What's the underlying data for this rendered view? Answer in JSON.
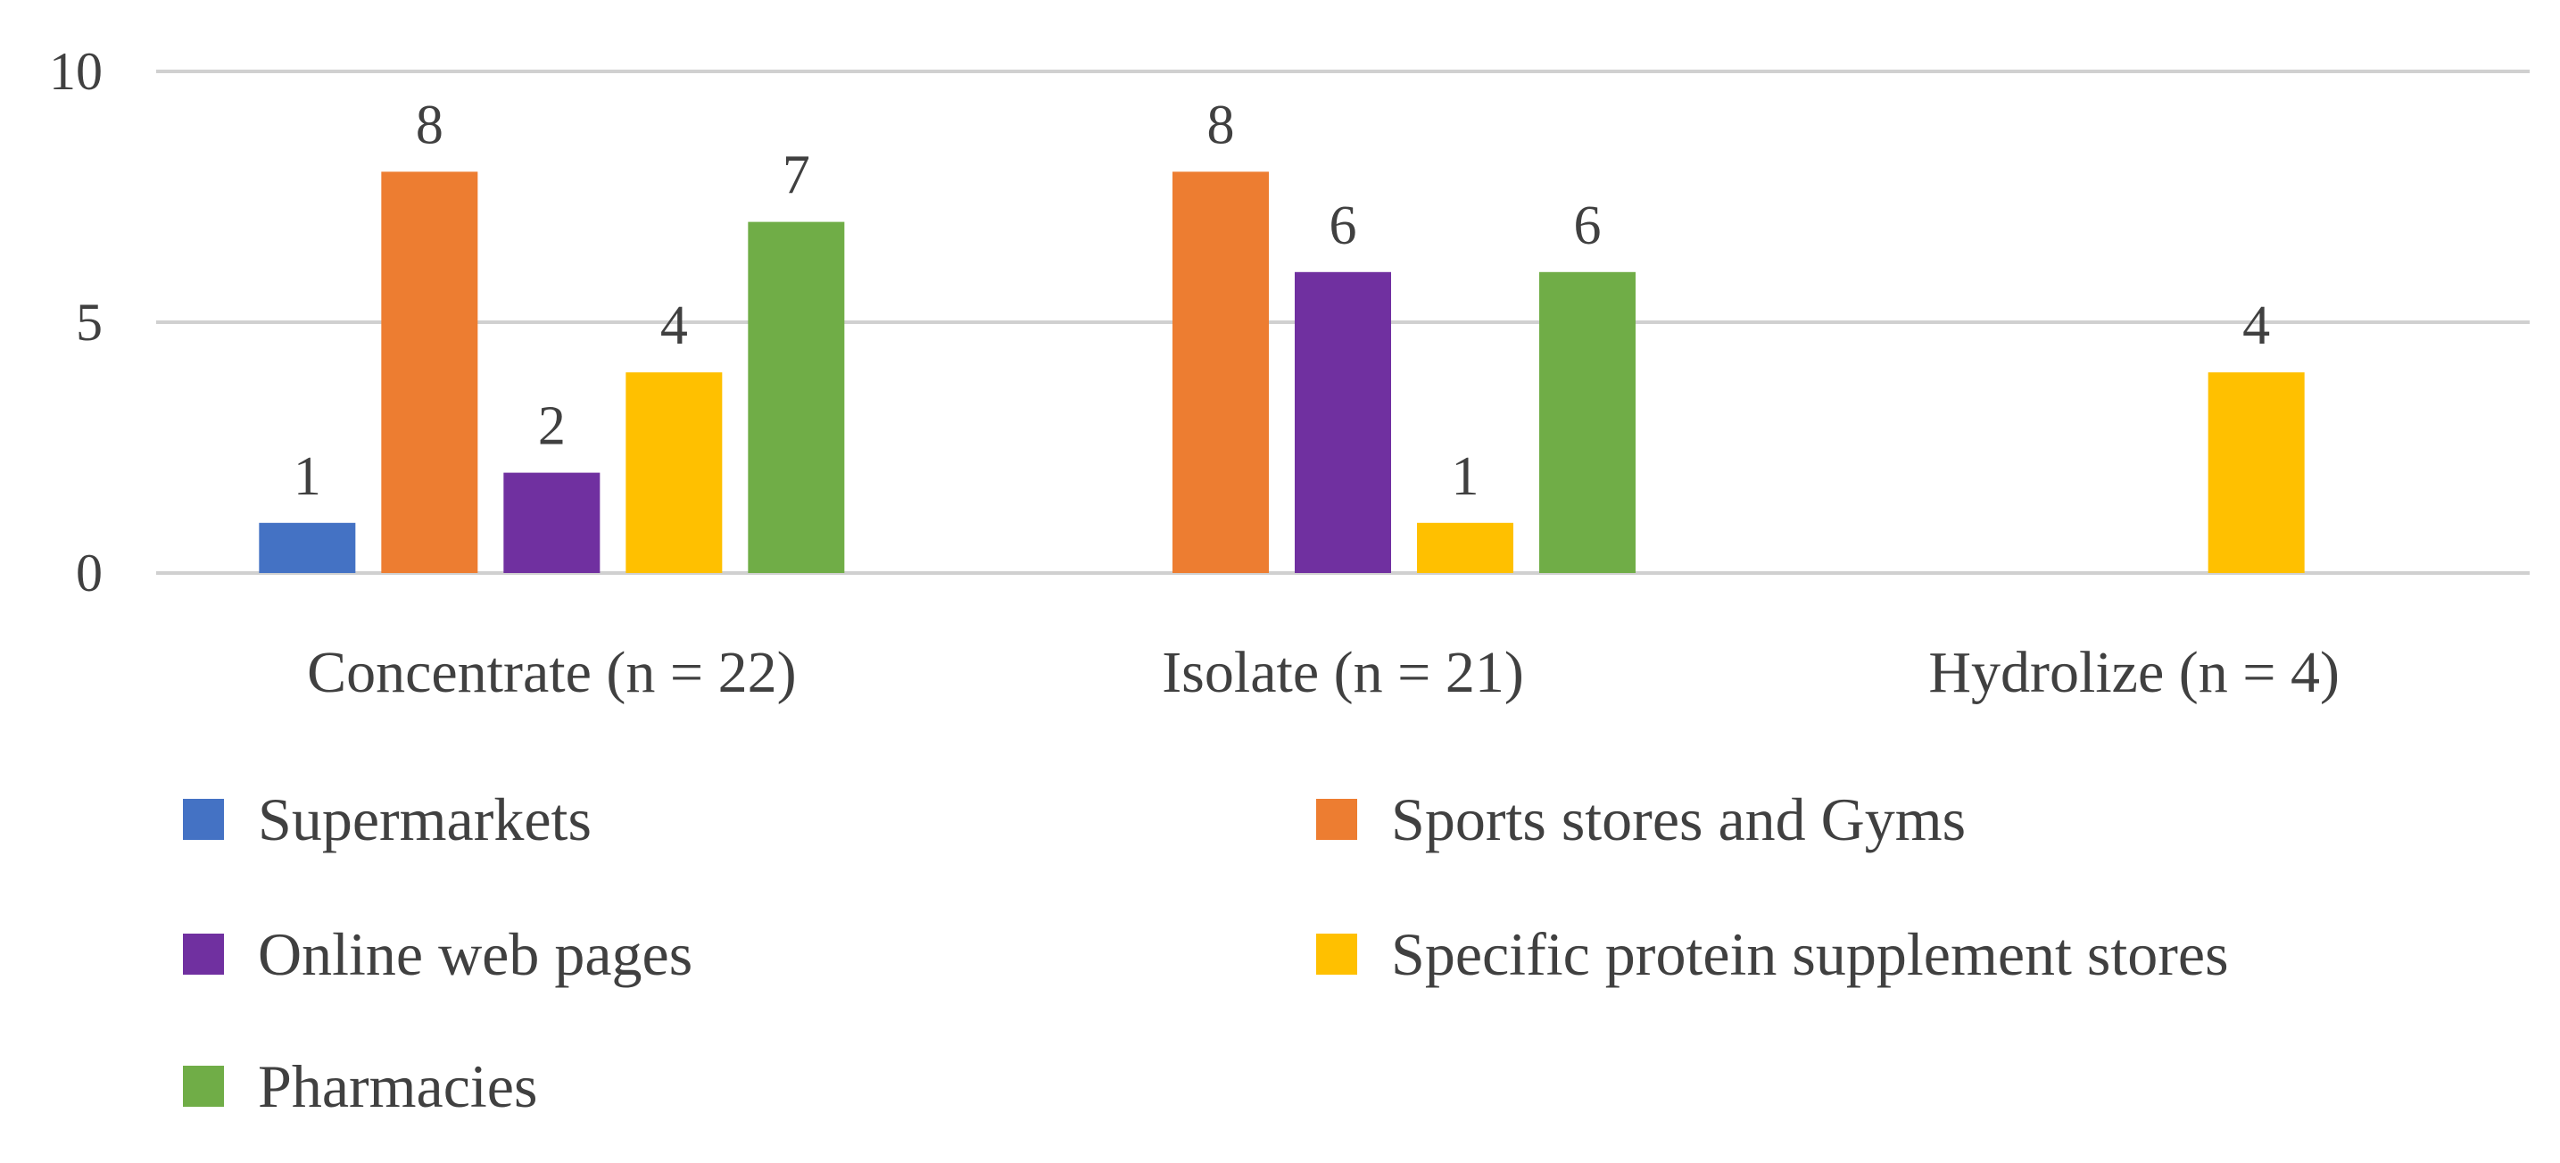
{
  "chart_data": {
    "type": "bar",
    "title": "",
    "xlabel": "",
    "ylabel": "",
    "categories": [
      "Concentrate (n = 22)",
      "Isolate (n = 21)",
      "Hydrolize (n = 4)"
    ],
    "ylim": [
      0,
      10
    ],
    "yticks": [
      "0",
      "5",
      "10"
    ],
    "grid": true,
    "legend_position": "bottom",
    "series": [
      {
        "name": "Supermarkets",
        "color": "#4472C4",
        "values": [
          1,
          null,
          null
        ],
        "labels": [
          "1",
          null,
          null
        ]
      },
      {
        "name": "Sports stores and Gyms",
        "color": "#ED7D31",
        "values": [
          8,
          8,
          null
        ],
        "labels": [
          "8",
          "8",
          null
        ]
      },
      {
        "name": "Online web pages",
        "color": "#7030A0",
        "values": [
          2,
          6,
          null
        ],
        "labels": [
          "2",
          "6",
          null
        ]
      },
      {
        "name": "Specific protein supplement stores",
        "color": "#FFC000",
        "values": [
          4,
          1,
          4
        ],
        "labels": [
          "4",
          "1",
          "4"
        ]
      },
      {
        "name": "Pharmacies",
        "color": "#70AD47",
        "values": [
          7,
          6,
          null
        ],
        "labels": [
          "7",
          "6",
          null
        ]
      }
    ]
  }
}
